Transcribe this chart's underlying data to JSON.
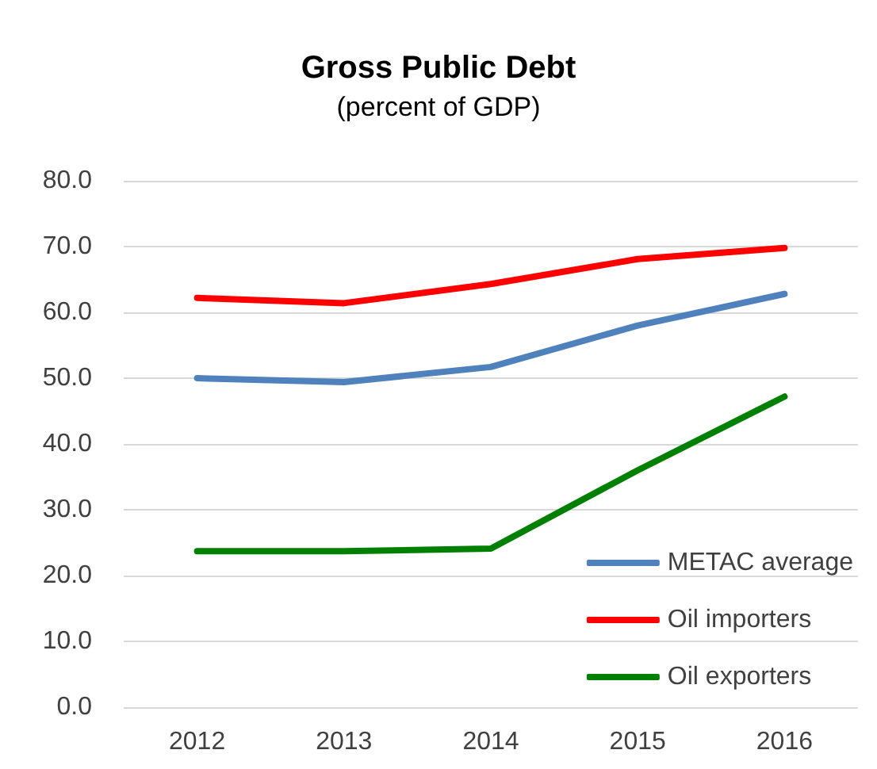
{
  "chart_data": {
    "type": "line",
    "title": "Gross Public Debt",
    "subtitle": "(percent of GDP)",
    "categories": [
      "2012",
      "2013",
      "2014",
      "2015",
      "2016"
    ],
    "series": [
      {
        "name": "METAC average",
        "color": "#4f81bd",
        "values": [
          50.0,
          49.4,
          51.7,
          58.0,
          62.8
        ]
      },
      {
        "name": "Oil importers",
        "color": "#ff0000",
        "values": [
          62.2,
          61.4,
          64.3,
          68.1,
          69.8
        ]
      },
      {
        "name": "Oil exporters",
        "color": "#008000",
        "values": [
          23.7,
          23.7,
          24.1,
          36.0,
          47.2
        ]
      }
    ],
    "ylim": [
      0,
      80
    ],
    "yticks": [
      {
        "value": 0,
        "label": "0.0"
      },
      {
        "value": 10,
        "label": "10.0"
      },
      {
        "value": 20,
        "label": "20.0"
      },
      {
        "value": 30,
        "label": "30.0"
      },
      {
        "value": 40,
        "label": "40.0"
      },
      {
        "value": 50,
        "label": "50.0"
      },
      {
        "value": 60,
        "label": "60.0"
      },
      {
        "value": 70,
        "label": "70.0"
      },
      {
        "value": 80,
        "label": "80.0"
      }
    ],
    "grid": "y",
    "legend": "bottom right",
    "marker": "none",
    "line_style": "solid"
  }
}
